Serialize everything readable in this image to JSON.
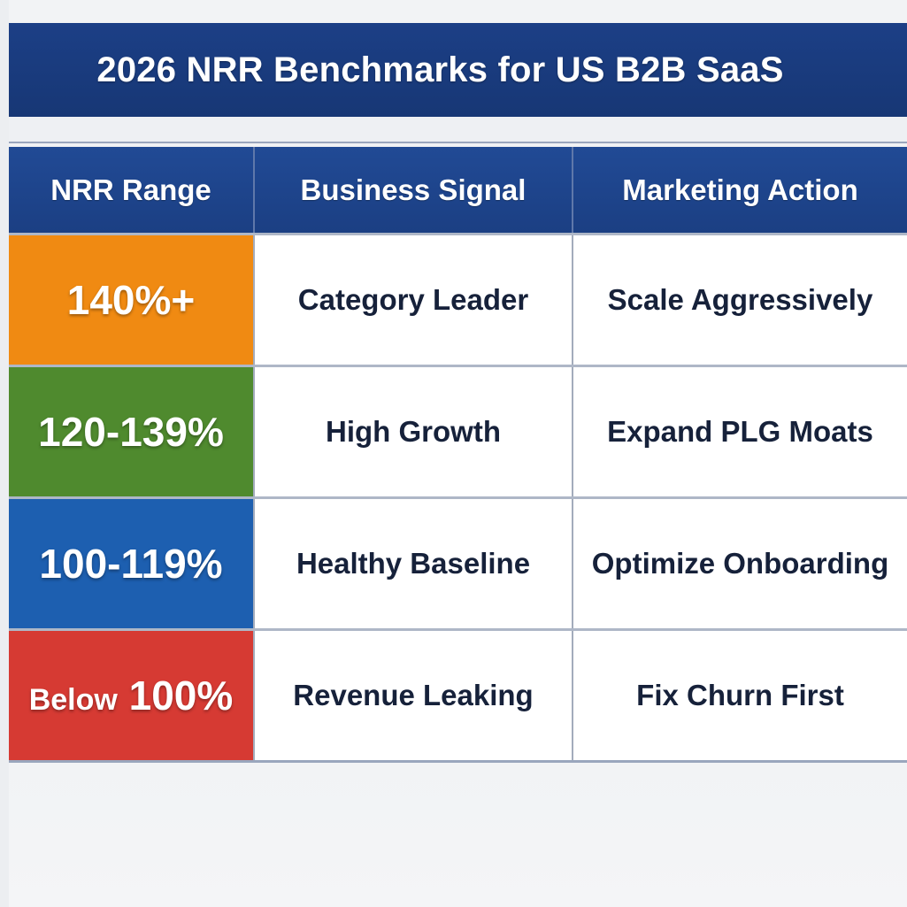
{
  "title": "2026 NRR Benchmarks for US B2B SaaS",
  "table": {
    "headers": [
      "NRR Range",
      "Business Signal",
      "Marketing Action"
    ],
    "rows": [
      {
        "range": "140%+",
        "signal": "Category Leader",
        "action": "Scale Aggressively",
        "color": "#f08a12"
      },
      {
        "range": "120-139%",
        "signal": "High Growth",
        "action": "Expand PLG Moats",
        "color": "#4f8a2e"
      },
      {
        "range": "100-119%",
        "signal": "Healthy Baseline",
        "action": "Optimize Onboarding",
        "color": "#1d5fb0"
      },
      {
        "range_prefix": "Below",
        "range": "100%",
        "signal": "Revenue Leaking",
        "action": "Fix Churn First",
        "color": "#d63a33"
      }
    ]
  }
}
